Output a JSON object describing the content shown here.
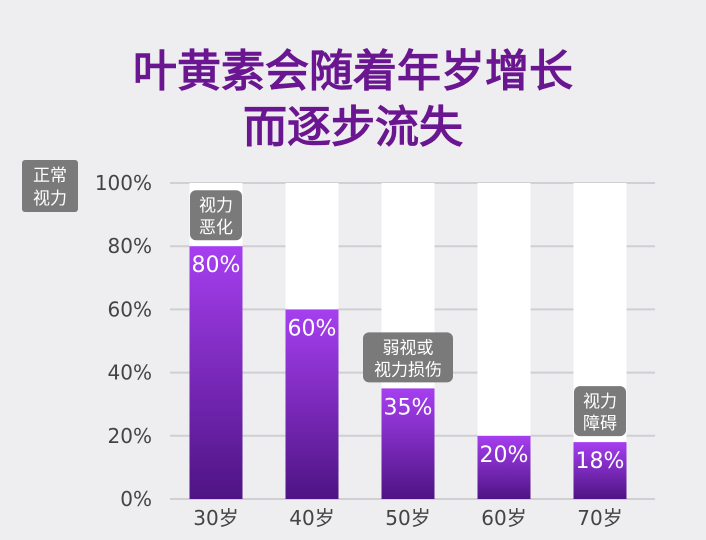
{
  "chart_data": {
    "type": "bar",
    "title_line1": "叶黄素会随着年岁增长",
    "title_line2": "而逐步流失",
    "ylabel_line1": "正常",
    "ylabel_line2": "视力",
    "categories": [
      "30岁",
      "40岁",
      "50岁",
      "60岁",
      "70岁"
    ],
    "values": [
      80,
      60,
      35,
      20,
      18
    ],
    "value_labels": [
      "80%",
      "60%",
      "35%",
      "20%",
      "18%"
    ],
    "yticks": [
      "0%",
      "20%",
      "40%",
      "60%",
      "80%",
      "100%"
    ],
    "ylim": [
      0,
      100
    ],
    "grid": true,
    "annotations": [
      {
        "category_index": 0,
        "line1": "视力",
        "line2": "恶化"
      },
      {
        "category_index": 2,
        "line1": "弱视或",
        "line2": "视力损伤"
      },
      {
        "category_index": 4,
        "line1": "视力",
        "line2": "障碍"
      }
    ],
    "colors": {
      "title": "#6a1690",
      "bar_top": "#a63ff0",
      "bar_bottom": "#4e1484",
      "track": "#ffffff",
      "grid": "#cfcfd4",
      "tick_text": "#444444",
      "box_bg": "#7a7a7a",
      "box_text": "#ffffff"
    }
  }
}
